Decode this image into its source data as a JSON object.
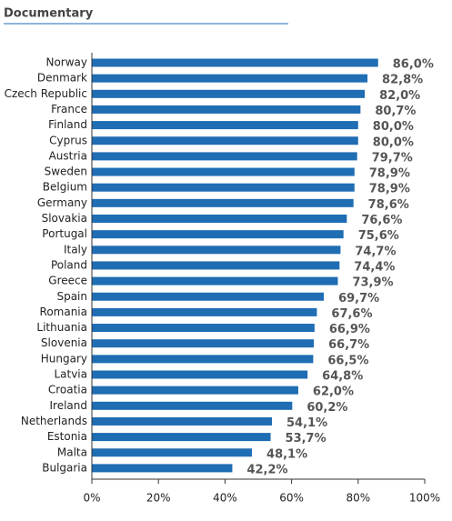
{
  "chart_data": {
    "type": "barh",
    "title": "Documentary",
    "categories": [
      "Norway",
      "Denmark",
      "Czech Republic",
      "France",
      "Finland",
      "Cyprus",
      "Austria",
      "Sweden",
      "Belgium",
      "Germany",
      "Slovakia",
      "Portugal",
      "Italy",
      "Poland",
      "Greece",
      "Spain",
      "Romania",
      "Lithuania",
      "Slovenia",
      "Hungary",
      "Latvia",
      "Croatia",
      "Ireland",
      "Netherlands",
      "Estonia",
      "Malta",
      "Bulgaria"
    ],
    "values": [
      86.0,
      82.8,
      82.0,
      80.7,
      80.0,
      80.0,
      79.7,
      78.9,
      78.9,
      78.6,
      76.6,
      75.6,
      74.7,
      74.4,
      73.9,
      69.7,
      67.6,
      66.9,
      66.7,
      66.5,
      64.8,
      62.0,
      60.2,
      54.1,
      53.7,
      48.1,
      42.2
    ],
    "value_labels": [
      "86,0%",
      "82,8%",
      "82,0%",
      "80,7%",
      "80,0%",
      "80,0%",
      "79,7%",
      "78,9%",
      "78,9%",
      "78,6%",
      "76,6%",
      "75,6%",
      "74,7%",
      "74,4%",
      "73,9%",
      "69,7%",
      "67,6%",
      "66,9%",
      "66,7%",
      "66,5%",
      "64,8%",
      "62,0%",
      "60,2%",
      "54,1%",
      "53,7%",
      "48,1%",
      "42,2%"
    ],
    "color": "#1f6db3",
    "xlim": [
      0,
      100
    ],
    "xticks": [
      {
        "value": 0,
        "label": "0%"
      },
      {
        "value": 20,
        "label": "20%"
      },
      {
        "value": 40,
        "label": "40%"
      },
      {
        "value": 60,
        "label": "60%"
      },
      {
        "value": 80,
        "label": "80%"
      },
      {
        "value": 100,
        "label": "100%"
      }
    ]
  }
}
